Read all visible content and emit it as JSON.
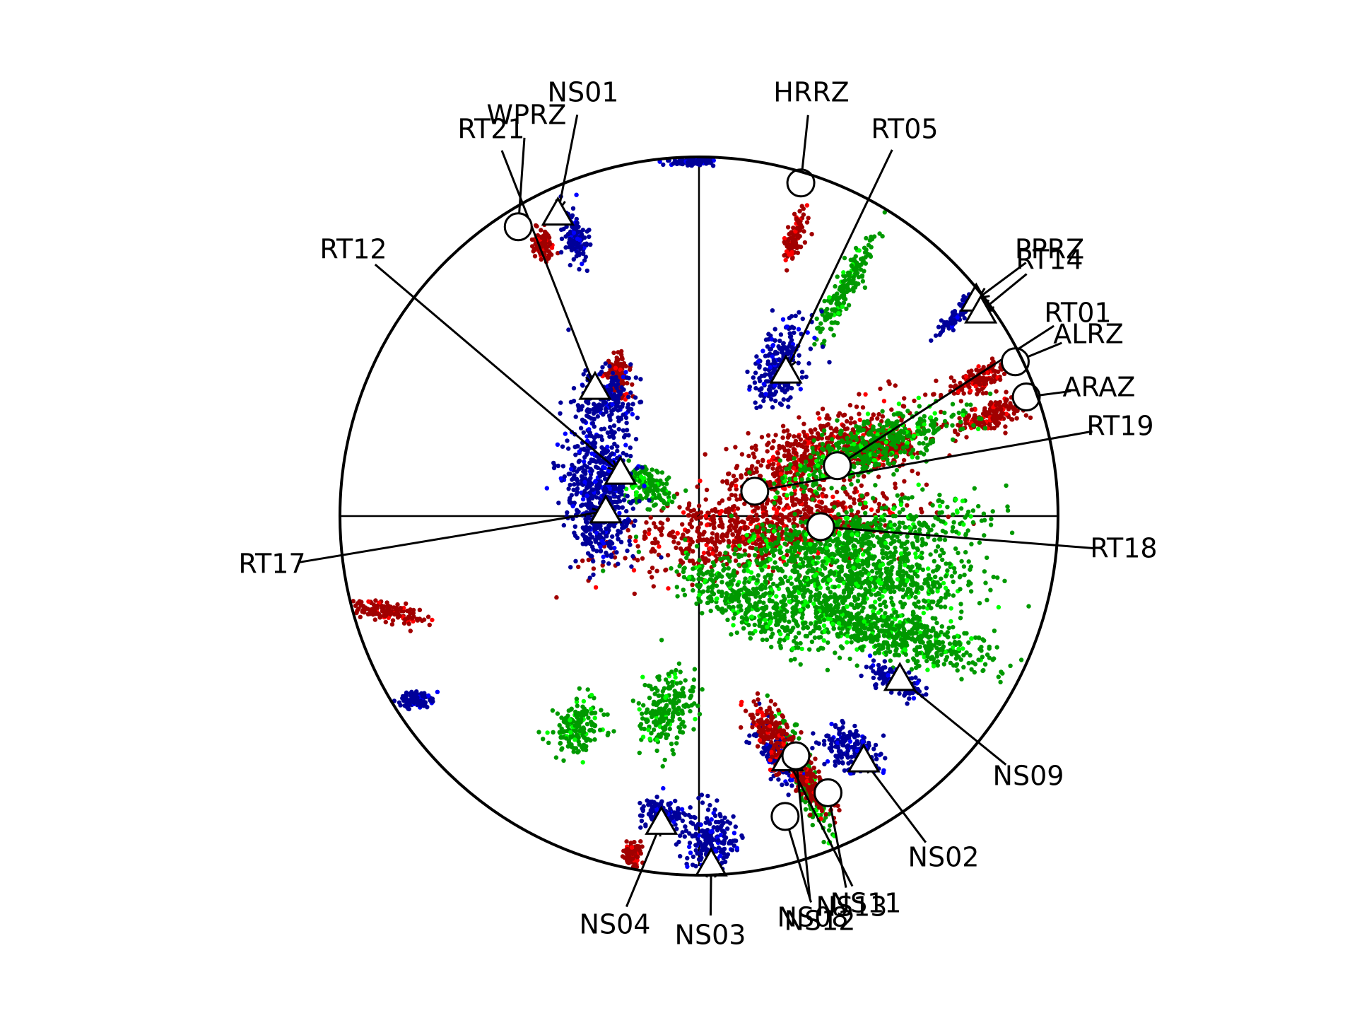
{
  "chart_data": {
    "type": "scatter",
    "title": "",
    "projection": "polar focal-sphere (stereonet)",
    "colors": {
      "red_dark": "#a00000",
      "red_bright": "#ff0000",
      "blue": "#000099",
      "blue_bright": "#0000ff",
      "green_dark": "#009900",
      "green_bright": "#00ff00"
    },
    "marker_legend": {
      "circle": "open circle (white fill)",
      "triangle": "open triangle (white fill)"
    },
    "stations": [
      {
        "label": "WPRZ",
        "marker": "circle",
        "az": 328,
        "r": 0.95
      },
      {
        "label": "NS01",
        "marker": "triangle",
        "az": 335,
        "r": 0.93
      },
      {
        "label": "HRRZ",
        "marker": "circle",
        "az": 17,
        "r": 0.97
      },
      {
        "label": "RT05",
        "marker": "triangle",
        "az": 31,
        "r": 0.47
      },
      {
        "label": "RT21",
        "marker": "triangle",
        "az": 321,
        "r": 0.46
      },
      {
        "label": "RT12",
        "marker": "triangle",
        "az": 299,
        "r": 0.25
      },
      {
        "label": "PPRZ",
        "marker": "triangle",
        "az": 52,
        "r": 0.98
      },
      {
        "label": "RT14",
        "marker": "triangle",
        "az": 54,
        "r": 0.97
      },
      {
        "label": "RT01",
        "marker": "circle",
        "az": 70,
        "r": 0.41
      },
      {
        "label": "ALRZ",
        "marker": "circle",
        "az": 64,
        "r": 0.98
      },
      {
        "label": "ARAZ",
        "marker": "circle",
        "az": 70,
        "r": 0.97
      },
      {
        "label": "RT19",
        "marker": "circle",
        "az": 66,
        "r": 0.17
      },
      {
        "label": "RT18",
        "marker": "circle",
        "az": 95,
        "r": 0.34
      },
      {
        "label": "RT17",
        "marker": "triangle",
        "az": 273,
        "r": 0.26
      },
      {
        "label": "NS09",
        "marker": "triangle",
        "az": 129,
        "r": 0.72
      },
      {
        "label": "NS02",
        "marker": "triangle",
        "az": 146,
        "r": 0.82
      },
      {
        "label": "NS11",
        "marker": "triangle",
        "az": 160,
        "r": 0.72
      },
      {
        "label": "NS13",
        "marker": "circle",
        "az": 155,
        "r": 0.85
      },
      {
        "label": "NS08",
        "marker": "circle",
        "az": 158,
        "r": 0.72
      },
      {
        "label": "NS12",
        "marker": "circle",
        "az": 164,
        "r": 0.87
      },
      {
        "label": "NS04",
        "marker": "triangle",
        "az": 187,
        "r": 0.86
      },
      {
        "label": "NS03",
        "marker": "triangle",
        "az": 178,
        "r": 0.97
      }
    ],
    "clusters": [
      {
        "color": "red_dark",
        "az": 330,
        "r": 0.87,
        "along": 25,
        "across": 14,
        "dir": 340
      },
      {
        "color": "blue",
        "az": 336,
        "r": 0.85,
        "along": 38,
        "across": 18,
        "dir": 170
      },
      {
        "color": "blue",
        "az": 359,
        "r": 0.99,
        "along": 36,
        "across": 7,
        "dir": 90
      },
      {
        "color": "red_dark",
        "az": 19,
        "r": 0.82,
        "along": 42,
        "across": 12,
        "dir": 195
      },
      {
        "color": "green_dark",
        "az": 33,
        "r": 0.75,
        "along": 95,
        "across": 18,
        "dir": 208
      },
      {
        "color": "blue",
        "az": 28,
        "r": 0.48,
        "along": 70,
        "across": 38,
        "dir": 200
      },
      {
        "color": "blue",
        "az": 52,
        "r": 0.93,
        "along": 60,
        "across": 10,
        "dir": 225
      },
      {
        "color": "red_dark",
        "az": 64,
        "r": 0.88,
        "along": 55,
        "across": 18,
        "dir": 245
      },
      {
        "color": "red_dark",
        "az": 71,
        "r": 0.86,
        "along": 70,
        "across": 20,
        "dir": 250
      },
      {
        "color": "red_dark",
        "az": 70,
        "r": 0.55,
        "along": 70,
        "across": 28,
        "dir": 250
      },
      {
        "color": "red_dark",
        "az": 60,
        "r": 0.36,
        "along": 150,
        "across": 45,
        "dir": 245
      },
      {
        "color": "red_dark",
        "az": 100,
        "r": 0.18,
        "along": 210,
        "across": 60,
        "dir": 260
      },
      {
        "color": "red_dark",
        "az": 330,
        "r": 0.45,
        "along": 30,
        "across": 20,
        "dir": 0
      },
      {
        "color": "green_dark",
        "az": 68,
        "r": 0.52,
        "along": 160,
        "across": 40,
        "dir": 250
      },
      {
        "color": "green_dark",
        "az": 100,
        "r": 0.42,
        "along": 200,
        "across": 55,
        "dir": 260
      },
      {
        "color": "green_dark",
        "az": 110,
        "r": 0.52,
        "along": 170,
        "across": 45,
        "dir": 275
      },
      {
        "color": "green_dark",
        "az": 125,
        "r": 0.5,
        "along": 150,
        "across": 35,
        "dir": 290
      },
      {
        "color": "green_dark",
        "az": 120,
        "r": 0.68,
        "along": 140,
        "across": 35,
        "dir": 285
      },
      {
        "color": "green_dark",
        "az": 300,
        "r": 0.16,
        "along": 40,
        "across": 30,
        "dir": 300
      },
      {
        "color": "green_dark",
        "az": 190,
        "r": 0.55,
        "along": 60,
        "across": 40,
        "dir": 200
      },
      {
        "color": "green_dark",
        "az": 210,
        "r": 0.68,
        "along": 45,
        "across": 35,
        "dir": 210
      },
      {
        "color": "green_dark",
        "az": 150,
        "r": 0.3,
        "along": 120,
        "across": 40,
        "dir": 300
      },
      {
        "color": "green_dark",
        "az": 158,
        "r": 0.78,
        "along": 90,
        "across": 18,
        "dir": 160
      },
      {
        "color": "blue",
        "az": 322,
        "r": 0.42,
        "along": 45,
        "across": 40,
        "dir": 0
      },
      {
        "color": "blue",
        "az": 290,
        "r": 0.3,
        "along": 110,
        "across": 55,
        "dir": 355
      },
      {
        "color": "blue",
        "az": 270,
        "r": 0.27,
        "along": 60,
        "across": 40,
        "dir": 0
      },
      {
        "color": "blue",
        "az": 130,
        "r": 0.72,
        "along": 45,
        "across": 22,
        "dir": 300
      },
      {
        "color": "blue",
        "az": 147,
        "r": 0.78,
        "along": 50,
        "across": 30,
        "dir": 300
      },
      {
        "color": "blue",
        "az": 162,
        "r": 0.7,
        "along": 50,
        "across": 22,
        "dir": 150
      },
      {
        "color": "blue",
        "az": 187,
        "r": 0.84,
        "along": 40,
        "across": 25,
        "dir": 90
      },
      {
        "color": "blue",
        "az": 178,
        "r": 0.91,
        "along": 50,
        "across": 40,
        "dir": 0
      },
      {
        "color": "blue",
        "az": 237,
        "r": 0.94,
        "along": 28,
        "across": 12,
        "dir": 90
      },
      {
        "color": "red_dark",
        "az": 253,
        "r": 0.91,
        "along": 60,
        "across": 14,
        "dir": 100
      },
      {
        "color": "red_dark",
        "az": 161,
        "r": 0.65,
        "along": 60,
        "across": 30,
        "dir": 330
      },
      {
        "color": "red_dark",
        "az": 157,
        "r": 0.82,
        "along": 55,
        "across": 20,
        "dir": 150
      },
      {
        "color": "red_dark",
        "az": 191,
        "r": 0.96,
        "along": 18,
        "across": 12,
        "dir": 0
      }
    ]
  }
}
